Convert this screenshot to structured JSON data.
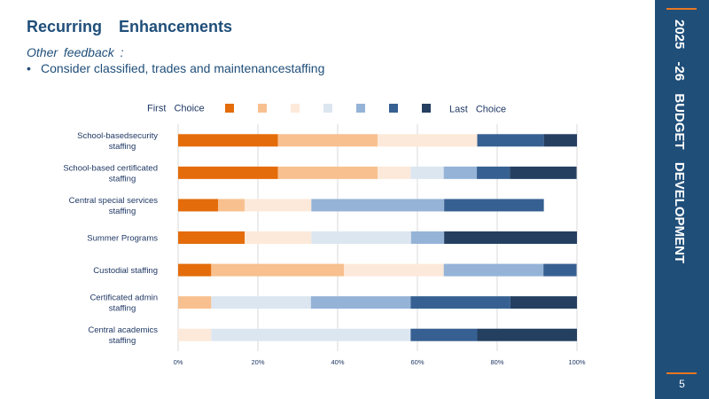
{
  "slide": {
    "title": "Recurring Enhancements",
    "subhead": "Other feedback :",
    "bullet": "Consider classified, trades and maintenancestaffing",
    "sidebar_text": "2025 -26 BUDGET DEVELOPMENT",
    "page_number": "5"
  },
  "colors": {
    "sidebar": "#1f4e79",
    "accent": "#e87722",
    "text": "#1f4e79"
  },
  "chart_data": {
    "type": "bar",
    "orientation": "horizontal",
    "stacked": true,
    "percent": true,
    "categories": [
      "School-basedsecurity staffing",
      "School-based certificated staffing",
      "Central special services staffing",
      "Summer Programs",
      "Custodial staffing",
      "Certificated admin staffing",
      "Central academics staffing"
    ],
    "legend": {
      "first_label": "First Choice",
      "last_label": "Last Choice",
      "position": "top"
    },
    "series": [
      {
        "color": "#e46c0a",
        "values": [
          25,
          25,
          10,
          16.7,
          8.3,
          0,
          0
        ]
      },
      {
        "color": "#f8c08f",
        "values": [
          25,
          25,
          6.7,
          0,
          33.3,
          8.3,
          0
        ]
      },
      {
        "color": "#fde9d9",
        "values": [
          25,
          8.3,
          16.7,
          16.7,
          25,
          0,
          8.3
        ]
      },
      {
        "color": "#dce6f1",
        "values": [
          0,
          8.3,
          0,
          25,
          0,
          25,
          50
        ]
      },
      {
        "color": "#95b3d7",
        "values": [
          0,
          8.3,
          33.3,
          8.3,
          25,
          25,
          0
        ]
      },
      {
        "color": "#376092",
        "values": [
          16.7,
          8.3,
          25,
          0,
          8.3,
          25,
          16.7
        ]
      },
      {
        "color": "#243f60",
        "values": [
          8.3,
          16.7,
          0,
          33.3,
          0,
          16.7,
          25
        ]
      }
    ],
    "xlim": [
      0,
      100
    ],
    "xticks": [
      "0%",
      "20%",
      "40%",
      "60%",
      "80%",
      "100%"
    ],
    "grid": true
  }
}
